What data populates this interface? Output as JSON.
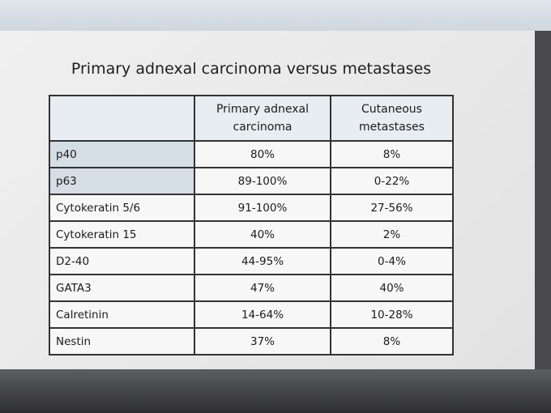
{
  "title": "Primary adnexal carcinoma versus metastases",
  "table": {
    "header": [
      "",
      "Primary adnexal carcinoma",
      "Cutaneous metastases"
    ],
    "rows": [
      [
        "p40",
        "80%",
        "8%"
      ],
      [
        "p63",
        "89-100%",
        "0-22%"
      ],
      [
        "Cytokeratin 5/6",
        "91-100%",
        "27-56%"
      ],
      [
        "Cytokeratin 15",
        "40%",
        "2%"
      ],
      [
        "D2-40",
        "44-95%",
        "0-4%"
      ],
      [
        "GATA3",
        "47%",
        "40%"
      ],
      [
        "Calretinin",
        "14-64%",
        "10-28%"
      ],
      [
        "Nestin",
        "37%",
        "8%"
      ]
    ]
  }
}
